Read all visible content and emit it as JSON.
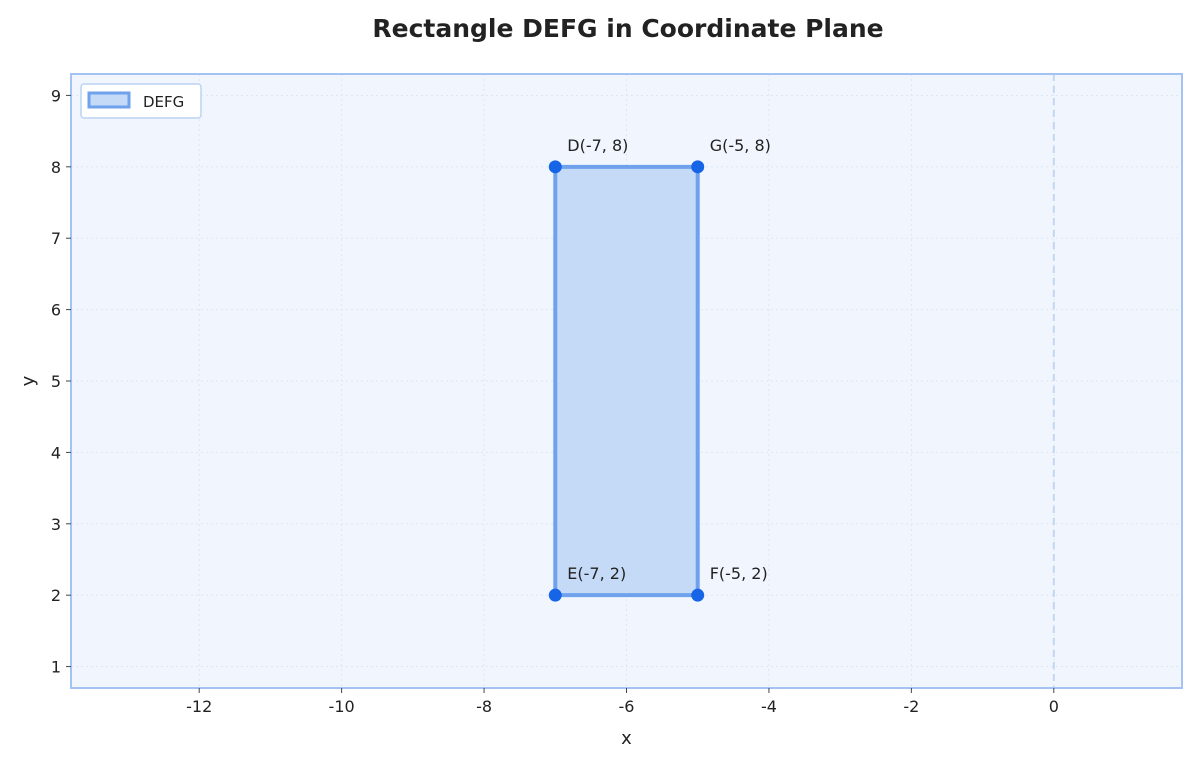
{
  "chart_data": {
    "type": "polygon",
    "title": "Rectangle DEFG in Coordinate Plane",
    "xlabel": "x",
    "ylabel": "y",
    "xlim": [
      -13.8,
      1.8
    ],
    "ylim": [
      0.7,
      9.3
    ],
    "xticks": [
      -12,
      -10,
      -8,
      -6,
      -4,
      -2,
      0
    ],
    "yticks": [
      1,
      2,
      3,
      4,
      5,
      6,
      7,
      8,
      9
    ],
    "grid": true,
    "legend_position": "top-left",
    "legend": [
      "DEFG"
    ],
    "series": [
      {
        "name": "DEFG",
        "vertices": [
          {
            "label": "D(-7, 8)",
            "x": -7,
            "y": 8
          },
          {
            "label": "E(-7, 2)",
            "x": -7,
            "y": 2
          },
          {
            "label": "F(-5, 2)",
            "x": -5,
            "y": 2
          },
          {
            "label": "G(-5, 8)",
            "x": -5,
            "y": 8
          }
        ]
      }
    ],
    "reference_lines": [
      {
        "axis": "x",
        "value": 0,
        "style": "dashed"
      }
    ],
    "colors": {
      "fill": "#c5daf7",
      "edge": "#6fa1ec",
      "point": "#1565e6",
      "plot_bg": "#f1f6fe",
      "frame": "#a4c3f2",
      "grid": "#dce6f4"
    }
  }
}
